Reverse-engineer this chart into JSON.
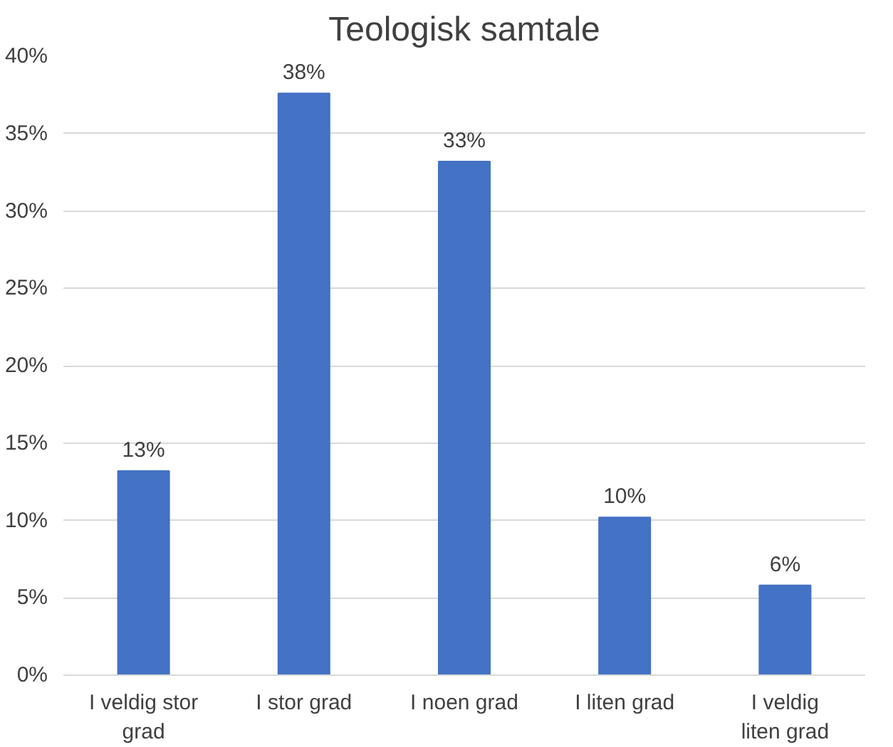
{
  "chart_data": {
    "type": "bar",
    "title": "Teologisk samtale",
    "categories": [
      "I veldig stor grad",
      "I stor grad",
      "I noen grad",
      "I liten grad",
      "I veldig liten grad"
    ],
    "values": [
      13.2,
      37.6,
      33.2,
      10.2,
      5.8
    ],
    "value_labels": [
      "13%",
      "38%",
      "33%",
      "10%",
      "6%"
    ],
    "color": "#4472c4",
    "ylim": [
      0,
      40
    ],
    "yticks": [
      {
        "value": 0,
        "label": "0%"
      },
      {
        "value": 5,
        "label": "5%"
      },
      {
        "value": 10,
        "label": "10%"
      },
      {
        "value": 15,
        "label": "15%"
      },
      {
        "value": 20,
        "label": "20%"
      },
      {
        "value": 25,
        "label": "25%"
      },
      {
        "value": 30,
        "label": "30%"
      },
      {
        "value": 35,
        "label": "35%"
      },
      {
        "value": 40,
        "label": "40%"
      }
    ],
    "grid": "y"
  }
}
